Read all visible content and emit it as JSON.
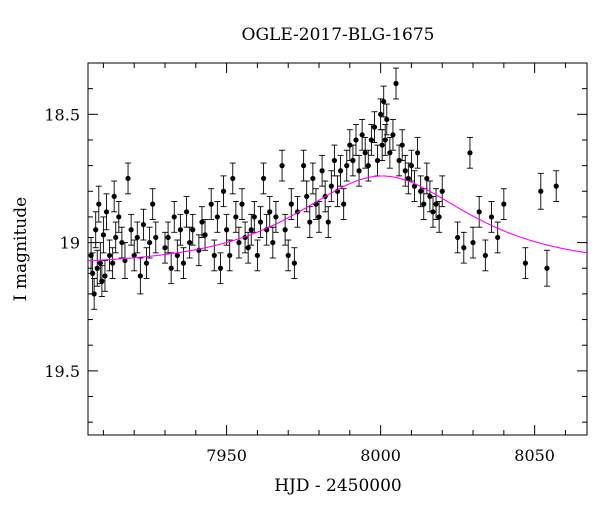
{
  "chart_data": {
    "type": "scatter",
    "title": "OGLE-2017-BLG-1675",
    "xlabel": "HJD - 2450000",
    "ylabel": "I magnitude",
    "xlim": [
      7905,
      8067
    ],
    "ylim": [
      19.75,
      18.3
    ],
    "y_inverted": true,
    "grid": false,
    "legend": "none",
    "x_ticks": [
      7950,
      8000,
      8050
    ],
    "y_ticks": [
      18.5,
      19,
      19.5
    ],
    "x_tick_labels": [
      "7950",
      "8000",
      "8050"
    ],
    "y_tick_labels": [
      "18.5",
      "19",
      "19.5"
    ],
    "colors": {
      "points": "#000000",
      "model": "#ff00ff"
    },
    "model": {
      "name": "",
      "t0": 8000.5,
      "u0": 0.95,
      "tE": 34,
      "I_base": 19.09
    },
    "series": [
      {
        "name": "",
        "points": [
          [
            7906,
            19.05,
            0.07
          ],
          [
            7906.5,
            19.12,
            0.08
          ],
          [
            7907,
            19.2,
            0.06
          ],
          [
            7907.5,
            18.95,
            0.07
          ],
          [
            7908,
            19.1,
            0.07
          ],
          [
            7908.5,
            18.85,
            0.07
          ],
          [
            7909,
            19.08,
            0.08
          ],
          [
            7909.5,
            19.15,
            0.06
          ],
          [
            7910,
            18.97,
            0.07
          ],
          [
            7910.5,
            19.13,
            0.06
          ],
          [
            7911,
            18.88,
            0.07
          ],
          [
            7912,
            19.05,
            0.06
          ],
          [
            7913,
            19.08,
            0.06
          ],
          [
            7913.5,
            18.82,
            0.06
          ],
          [
            7914,
            18.98,
            0.06
          ],
          [
            7915,
            18.9,
            0.06
          ],
          [
            7916,
            19.0,
            0.06
          ],
          [
            7917,
            19.07,
            0.07
          ],
          [
            7918,
            18.75,
            0.06
          ],
          [
            7919,
            18.95,
            0.06
          ],
          [
            7920,
            19.05,
            0.06
          ],
          [
            7921,
            18.98,
            0.06
          ],
          [
            7922,
            19.13,
            0.07
          ],
          [
            7923,
            18.93,
            0.06
          ],
          [
            7924,
            19.08,
            0.06
          ],
          [
            7925,
            19.0,
            0.06
          ],
          [
            7926,
            18.85,
            0.06
          ],
          [
            7927,
            18.98,
            0.06
          ],
          [
            7930,
            19.02,
            0.06
          ],
          [
            7931,
            18.98,
            0.06
          ],
          [
            7932,
            19.1,
            0.06
          ],
          [
            7933,
            18.9,
            0.06
          ],
          [
            7934,
            19.05,
            0.06
          ],
          [
            7935,
            18.95,
            0.06
          ],
          [
            7936,
            19.08,
            0.06
          ],
          [
            7937,
            18.88,
            0.06
          ],
          [
            7938,
            19.0,
            0.06
          ],
          [
            7939,
            18.95,
            0.06
          ],
          [
            7941,
            19.03,
            0.06
          ],
          [
            7942,
            18.92,
            0.06
          ],
          [
            7943,
            18.97,
            0.06
          ],
          [
            7945,
            18.85,
            0.06
          ],
          [
            7946,
            19.05,
            0.06
          ],
          [
            7947,
            18.9,
            0.06
          ],
          [
            7948,
            19.1,
            0.06
          ],
          [
            7949,
            18.8,
            0.06
          ],
          [
            7950,
            18.95,
            0.06
          ],
          [
            7951,
            19.05,
            0.06
          ],
          [
            7952,
            18.75,
            0.06
          ],
          [
            7953,
            18.9,
            0.06
          ],
          [
            7954,
            19.0,
            0.06
          ],
          [
            7955,
            18.85,
            0.06
          ],
          [
            7956,
            18.98,
            0.06
          ],
          [
            7957,
            19.02,
            0.06
          ],
          [
            7958,
            18.95,
            0.06
          ],
          [
            7959,
            18.9,
            0.06
          ],
          [
            7960,
            19.05,
            0.06
          ],
          [
            7961,
            18.92,
            0.06
          ],
          [
            7962,
            18.75,
            0.06
          ],
          [
            7963,
            18.95,
            0.06
          ],
          [
            7964,
            18.88,
            0.06
          ],
          [
            7965,
            19.0,
            0.06
          ],
          [
            7966,
            18.9,
            0.06
          ],
          [
            7968,
            18.7,
            0.06
          ],
          [
            7969,
            18.95,
            0.06
          ],
          [
            7970,
            19.05,
            0.06
          ],
          [
            7971,
            18.85,
            0.06
          ],
          [
            7972,
            19.08,
            0.06
          ],
          [
            7973,
            18.88,
            0.06
          ],
          [
            7975,
            18.7,
            0.06
          ],
          [
            7976,
            18.82,
            0.06
          ],
          [
            7977,
            18.92,
            0.06
          ],
          [
            7978,
            18.75,
            0.06
          ],
          [
            7979,
            18.85,
            0.06
          ],
          [
            7980,
            18.9,
            0.06
          ],
          [
            7981,
            18.72,
            0.06
          ],
          [
            7982,
            18.82,
            0.06
          ],
          [
            7983,
            18.92,
            0.06
          ],
          [
            7984,
            18.78,
            0.06
          ],
          [
            7985,
            18.68,
            0.06
          ],
          [
            7986,
            18.8,
            0.06
          ],
          [
            7987,
            18.72,
            0.06
          ],
          [
            7988,
            18.85,
            0.06
          ],
          [
            7989,
            18.7,
            0.06
          ],
          [
            7990,
            18.62,
            0.06
          ],
          [
            7991,
            18.68,
            0.06
          ],
          [
            7992,
            18.6,
            0.06
          ],
          [
            7993,
            18.72,
            0.06
          ],
          [
            7994,
            18.58,
            0.06
          ],
          [
            7995,
            18.65,
            0.06
          ],
          [
            7996,
            18.7,
            0.06
          ],
          [
            7997,
            18.6,
            0.06
          ],
          [
            7998,
            18.55,
            0.06
          ],
          [
            7999,
            18.68,
            0.06
          ],
          [
            8000,
            18.5,
            0.06
          ],
          [
            8000.5,
            18.62,
            0.06
          ],
          [
            8001,
            18.45,
            0.06
          ],
          [
            8001.5,
            18.6,
            0.06
          ],
          [
            8002,
            18.52,
            0.06
          ],
          [
            8003,
            18.65,
            0.06
          ],
          [
            8004,
            18.58,
            0.06
          ],
          [
            8005,
            18.38,
            0.06
          ],
          [
            8006,
            18.68,
            0.06
          ],
          [
            8007,
            18.62,
            0.06
          ],
          [
            8008,
            18.72,
            0.06
          ],
          [
            8009,
            18.75,
            0.06
          ],
          [
            8010,
            18.7,
            0.06
          ],
          [
            8011,
            18.78,
            0.06
          ],
          [
            8012,
            18.65,
            0.06
          ],
          [
            8013,
            18.8,
            0.06
          ],
          [
            8014,
            18.85,
            0.06
          ],
          [
            8015,
            18.75,
            0.06
          ],
          [
            8016,
            18.82,
            0.06
          ],
          [
            8017,
            18.88,
            0.06
          ],
          [
            8018,
            18.85,
            0.06
          ],
          [
            8019,
            18.9,
            0.06
          ],
          [
            8020,
            18.8,
            0.06
          ],
          [
            8025,
            18.98,
            0.06
          ],
          [
            8027,
            19.02,
            0.06
          ],
          [
            8029,
            18.65,
            0.06
          ],
          [
            8030,
            19.0,
            0.06
          ],
          [
            8032,
            18.88,
            0.06
          ],
          [
            8034,
            19.05,
            0.06
          ],
          [
            8036,
            18.9,
            0.06
          ],
          [
            8038,
            18.98,
            0.06
          ],
          [
            8040,
            18.85,
            0.06
          ],
          [
            8047,
            19.08,
            0.06
          ],
          [
            8052,
            18.8,
            0.07
          ],
          [
            8054,
            19.1,
            0.07
          ],
          [
            8057,
            18.78,
            0.06
          ]
        ]
      }
    ]
  }
}
